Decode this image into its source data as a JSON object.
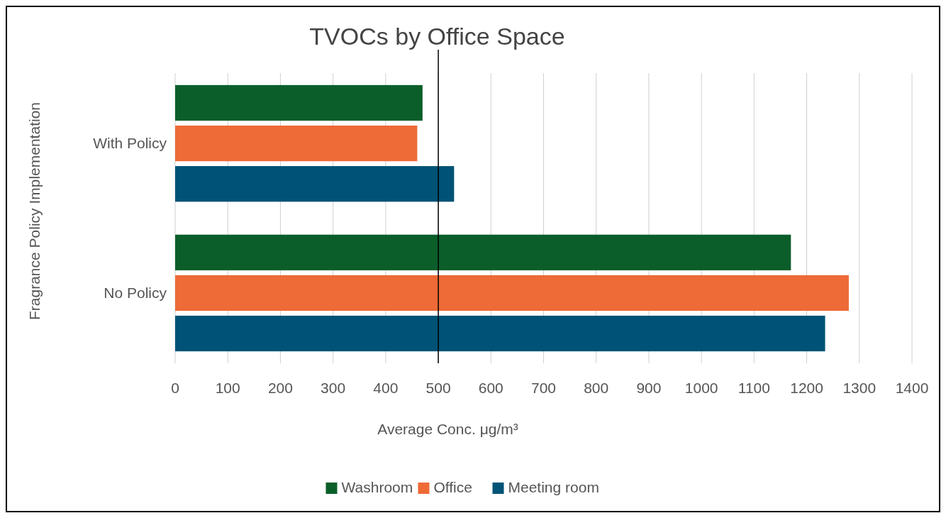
{
  "chart_data": {
    "type": "bar",
    "orientation": "horizontal",
    "title": "TVOCs by Office Space",
    "xlabel": "Average Conc. μg/m³",
    "ylabel": "Fragrance Policy Implementation",
    "categories": [
      "With Policy",
      "No Policy"
    ],
    "series": [
      {
        "name": "Washroom",
        "color": "#0b5e2a",
        "values": [
          470,
          1170
        ]
      },
      {
        "name": "Office",
        "color": "#ee6a36",
        "values": [
          460,
          1280
        ]
      },
      {
        "name": "Meeting room",
        "color": "#005376",
        "values": [
          530,
          1235
        ]
      }
    ],
    "xlim": [
      0,
      1400
    ],
    "xticks": [
      0,
      100,
      200,
      300,
      400,
      500,
      600,
      700,
      800,
      900,
      1000,
      1100,
      1200,
      1300,
      1400
    ],
    "grid": "x",
    "legend": "bottom",
    "ref_lines": [
      {
        "axis": "x",
        "value": 500,
        "color": "#000000"
      }
    ]
  }
}
